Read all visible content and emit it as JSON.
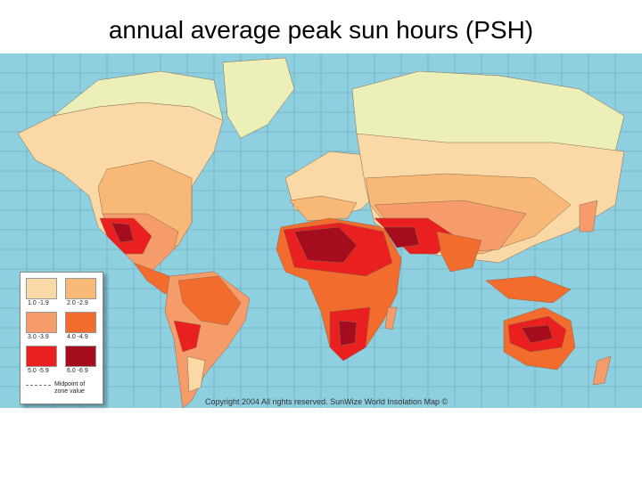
{
  "title": "annual average peak sun hours (PSH)",
  "legend": {
    "zones": [
      {
        "label": "1.0 -1.9",
        "color": "#fbd9a6"
      },
      {
        "label": "2.0 -2.9",
        "color": "#f8b877"
      },
      {
        "label": "3.0 -3.9",
        "color": "#f59c6a"
      },
      {
        "label": "4.0 -4.9",
        "color": "#f26c2d"
      },
      {
        "label": "5.0 -5.9",
        "color": "#ea1f1f"
      },
      {
        "label": "6.0 -6.9",
        "color": "#a50d1e"
      }
    ],
    "midpoint_label": "Midpoint of zone value"
  },
  "copyright": "Copyright 2004 All rights reserved. SunWize World Insolation Map ©",
  "colors": {
    "ocean": "#8ecfe0",
    "grid": "#5e9bb0",
    "polar_land": "#ecf0b8"
  }
}
